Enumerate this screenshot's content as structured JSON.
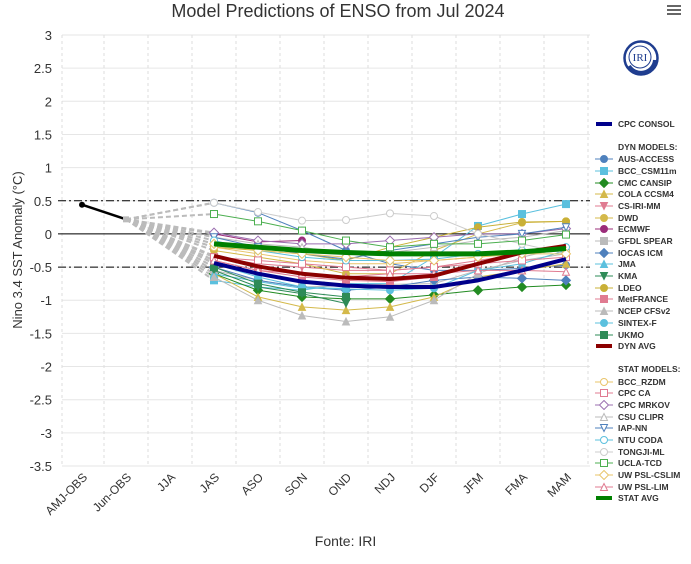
{
  "header": {
    "title": "Model Predictions of ENSO from Jul 2024",
    "menu_icon": "hamburger-menu-icon"
  },
  "source_label": "Fonte: IRI",
  "logo": {
    "text": "IRI",
    "color": "#1f3d8f"
  },
  "legend": {
    "headers": {
      "dyn": "DYN MODELS:",
      "stat": "STAT MODELS:"
    }
  },
  "chart_data": {
    "type": "line",
    "title": "Model Predictions of ENSO from Jul 2024",
    "xlabel": "",
    "ylabel": "Nino 3.4 SST Anomaly (°C)",
    "ylim": [
      -3.5,
      3
    ],
    "yticks": [
      3,
      2.5,
      2,
      1.5,
      1,
      0.5,
      0,
      -0.5,
      -1,
      -1.5,
      -2,
      -2.5,
      -3,
      -3.5
    ],
    "yticklabels": [
      "3",
      "2.5",
      "2",
      "1.5",
      "1",
      "0.5",
      "0",
      "-0.5",
      "-1",
      "-1.5",
      "-2",
      "-2.5",
      "-3",
      "-3.5"
    ],
    "categories": [
      "AMJ-OBS",
      "Jun-OBS",
      "JJA",
      "JAS",
      "ASO",
      "SON",
      "OND",
      "NDJ",
      "DJF",
      "JFM",
      "FMA",
      "MAM"
    ],
    "reference_lines": [
      {
        "value": 0.5,
        "style": "dashdot"
      },
      {
        "value": 0,
        "style": "solid"
      },
      {
        "value": -0.5,
        "style": "dashdot"
      }
    ],
    "grid": true,
    "legend_position": "right",
    "observed": {
      "name": "OBS",
      "color": "#000000",
      "values": [
        0.44,
        0.22
      ]
    },
    "series": [
      {
        "name": "CPC CONSOL",
        "group": "avg",
        "color": "#00008b",
        "marker": "none",
        "width": 4,
        "values": [
          null,
          null,
          null,
          -0.44,
          -0.6,
          -0.72,
          -0.78,
          -0.8,
          -0.8,
          -0.7,
          -0.55,
          -0.38
        ]
      },
      {
        "name": "AUS-ACCESS",
        "group": "dyn",
        "color": "#4f81bd",
        "marker": "circle",
        "filled": true,
        "values": [
          null,
          null,
          null,
          0.47,
          0.32,
          0.05,
          -0.25,
          -0.45,
          -0.55,
          -0.55,
          -0.52,
          -0.47
        ]
      },
      {
        "name": "BCC_CSM11m",
        "group": "dyn",
        "color": "#5bc0de",
        "marker": "square",
        "filled": true,
        "values": [
          null,
          null,
          null,
          -0.7,
          -0.8,
          -0.85,
          -0.75,
          -0.75,
          -0.35,
          0.12,
          0.3,
          0.45
        ]
      },
      {
        "name": "CMC CANSIP",
        "group": "dyn",
        "color": "#228b22",
        "marker": "diamond",
        "filled": true,
        "values": [
          null,
          null,
          null,
          -0.6,
          -0.85,
          -0.95,
          -0.98,
          -0.98,
          -0.92,
          -0.85,
          -0.8,
          -0.77
        ]
      },
      {
        "name": "COLA CCSM4",
        "group": "dyn",
        "color": "#d4b94a",
        "marker": "triangle",
        "filled": true,
        "values": [
          null,
          null,
          null,
          -0.6,
          -0.95,
          -1.1,
          -1.15,
          -1.1,
          -0.95,
          -0.65,
          -0.55,
          -0.45
        ]
      },
      {
        "name": "CS-IRI-MM",
        "group": "dyn",
        "color": "#e07b91",
        "marker": "triangle-down",
        "filled": true,
        "values": [
          null,
          null,
          null,
          -0.35,
          -0.45,
          -0.5,
          -0.55,
          -0.55,
          -0.5,
          -0.4,
          -0.3,
          -0.25
        ]
      },
      {
        "name": "DWD",
        "group": "dyn",
        "color": "#d4b94a",
        "marker": "circle",
        "filled": true,
        "values": [
          null,
          null,
          null,
          -0.25,
          -0.35,
          -0.45,
          -0.6,
          -0.6,
          -0.25,
          0.0,
          0.17,
          0.19
        ]
      },
      {
        "name": "ECMWF",
        "group": "dyn",
        "color": "#9b2c7a",
        "marker": "circle",
        "filled": true,
        "values": [
          null,
          null,
          null,
          0.0,
          -0.12,
          -0.1,
          null,
          null,
          null,
          null,
          null,
          null
        ]
      },
      {
        "name": "GFDL SPEAR",
        "group": "dyn",
        "color": "#bbbbbb",
        "marker": "square",
        "filled": true,
        "values": [
          null,
          null,
          null,
          -0.55,
          -0.7,
          -0.8,
          -0.78,
          -0.76,
          -0.75,
          -0.55,
          -0.4,
          -0.3
        ]
      },
      {
        "name": "IOCAS ICM",
        "group": "dyn",
        "color": "#4f81bd",
        "marker": "diamond",
        "filled": true,
        "values": [
          null,
          null,
          null,
          -0.5,
          -0.7,
          -0.8,
          -0.85,
          -0.8,
          -0.7,
          -0.65,
          -0.67,
          -0.7
        ]
      },
      {
        "name": "JMA",
        "group": "dyn",
        "color": "#5bc0de",
        "marker": "triangle",
        "filled": true,
        "values": [
          null,
          null,
          null,
          -0.6,
          -0.72,
          -0.82,
          -0.82,
          null,
          null,
          null,
          null,
          null
        ]
      },
      {
        "name": "KMA",
        "group": "dyn",
        "color": "#2e8b57",
        "marker": "triangle-down",
        "filled": true,
        "values": [
          null,
          null,
          null,
          -0.55,
          -0.8,
          -0.9,
          -1.05,
          null,
          null,
          null,
          null,
          null
        ]
      },
      {
        "name": "LDEO",
        "group": "dyn",
        "color": "#c9b037",
        "marker": "circle",
        "filled": true,
        "values": [
          null,
          null,
          null,
          -0.2,
          -0.25,
          -0.3,
          -0.4,
          -0.2,
          -0.05,
          0.1,
          0.18,
          0.19
        ]
      },
      {
        "name": "MetFRANCE",
        "group": "dyn",
        "color": "#e07b91",
        "marker": "square",
        "filled": true,
        "values": [
          null,
          null,
          null,
          -0.4,
          -0.55,
          -0.65,
          -0.7,
          -0.72,
          -0.65,
          null,
          null,
          null
        ]
      },
      {
        "name": "NCEP CFSv2",
        "group": "dyn",
        "color": "#bbbbbb",
        "marker": "triangle",
        "filled": true,
        "values": [
          null,
          null,
          null,
          -0.65,
          -1.0,
          -1.23,
          -1.32,
          -1.25,
          -1.0,
          -0.6,
          -0.35,
          -0.2
        ]
      },
      {
        "name": "SINTEX-F",
        "group": "dyn",
        "color": "#5bc0de",
        "marker": "circle",
        "filled": true,
        "values": [
          null,
          null,
          null,
          -0.45,
          -0.65,
          -0.8,
          -0.83,
          -0.85,
          -0.82,
          -0.55,
          -0.45,
          -0.25
        ]
      },
      {
        "name": "UKMO",
        "group": "dyn",
        "color": "#2e8b57",
        "marker": "square",
        "filled": true,
        "values": [
          null,
          null,
          null,
          -0.5,
          -0.75,
          -0.88,
          -0.95,
          null,
          null,
          null,
          null,
          null
        ]
      },
      {
        "name": "DYN AVG",
        "group": "avg",
        "color": "#8b0000",
        "marker": "none",
        "width": 4,
        "values": [
          null,
          null,
          null,
          -0.33,
          -0.49,
          -0.6,
          -0.66,
          -0.68,
          -0.63,
          -0.45,
          -0.28,
          -0.18
        ]
      },
      {
        "name": "BCC_RZDM",
        "group": "stat",
        "color": "#e8c46a",
        "marker": "circle",
        "filled": false,
        "values": [
          null,
          null,
          null,
          -0.2,
          -0.3,
          -0.4,
          -0.45,
          -0.45,
          -0.4,
          -0.35,
          -0.3,
          -0.25
        ]
      },
      {
        "name": "CPC CA",
        "group": "stat",
        "color": "#e07b91",
        "marker": "square",
        "filled": false,
        "values": [
          null,
          null,
          null,
          -0.35,
          -0.4,
          -0.45,
          -0.5,
          -0.55,
          -0.5,
          -0.45,
          -0.4,
          -0.35
        ]
      },
      {
        "name": "CPC MRKOV",
        "group": "stat",
        "color": "#9b6fb0",
        "marker": "diamond",
        "filled": false,
        "values": [
          null,
          null,
          null,
          0.02,
          -0.1,
          -0.15,
          -0.15,
          -0.1,
          -0.05,
          0.0,
          0.0,
          0.08
        ]
      },
      {
        "name": "CSU CLIPR",
        "group": "stat",
        "color": "#bbbbbb",
        "marker": "triangle",
        "filled": false,
        "values": [
          null,
          null,
          null,
          -0.05,
          -0.15,
          -0.2,
          -0.3,
          -0.28,
          -0.2,
          -0.1,
          -0.05,
          0.05
        ]
      },
      {
        "name": "IAP-NN",
        "group": "stat",
        "color": "#4f81bd",
        "marker": "triangle-down",
        "filled": false,
        "values": [
          null,
          null,
          null,
          -0.05,
          -0.2,
          -0.3,
          -0.38,
          -0.25,
          -0.15,
          -0.05,
          0.0,
          0.1
        ]
      },
      {
        "name": "NTU CODA",
        "group": "stat",
        "color": "#5bc0de",
        "marker": "circle",
        "filled": false,
        "values": [
          null,
          null,
          null,
          -0.1,
          -0.25,
          -0.35,
          -0.4,
          -0.4,
          -0.38,
          -0.3,
          -0.25,
          -0.2
        ]
      },
      {
        "name": "TONGJI-ML",
        "group": "stat",
        "color": "#cccccc",
        "marker": "circle",
        "filled": false,
        "values": [
          null,
          null,
          null,
          0.47,
          0.33,
          0.2,
          0.21,
          0.31,
          0.27,
          0.0,
          -0.15,
          -0.3
        ]
      },
      {
        "name": "UCLA-TCD",
        "group": "stat",
        "color": "#4caf50",
        "marker": "square",
        "filled": false,
        "values": [
          null,
          null,
          null,
          0.3,
          0.19,
          0.05,
          -0.1,
          -0.2,
          -0.15,
          -0.15,
          -0.1,
          -0.01
        ]
      },
      {
        "name": "UW PSL-CSLIM",
        "group": "stat",
        "color": "#e8c46a",
        "marker": "diamond",
        "filled": false,
        "values": [
          null,
          null,
          null,
          -0.15,
          -0.25,
          -0.3,
          -0.35,
          -0.4,
          -0.4,
          -0.35,
          -0.3,
          -0.3
        ]
      },
      {
        "name": "UW PSL-LIM",
        "group": "stat",
        "color": "#e07b91",
        "marker": "triangle",
        "filled": false,
        "values": [
          null,
          null,
          null,
          -0.4,
          -0.55,
          -0.6,
          -0.65,
          -0.6,
          -0.6,
          -0.55,
          -0.55,
          -0.57
        ]
      },
      {
        "name": "STAT AVG",
        "group": "avg",
        "color": "#008000",
        "marker": "none",
        "width": 5,
        "values": [
          null,
          null,
          null,
          -0.15,
          -0.2,
          -0.25,
          -0.28,
          -0.3,
          -0.3,
          -0.3,
          -0.27,
          -0.22
        ]
      }
    ]
  }
}
